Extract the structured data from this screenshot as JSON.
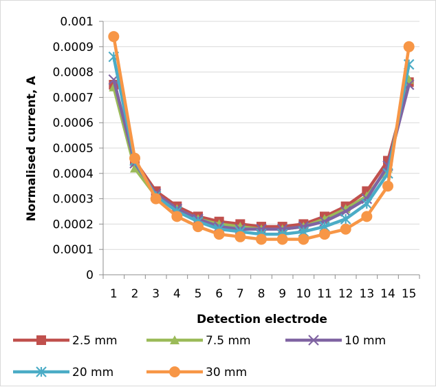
{
  "chart_data": {
    "type": "line",
    "title": "",
    "xlabel": "Detection electrode",
    "ylabel": "Normalised current, A",
    "x": [
      1,
      2,
      3,
      4,
      5,
      6,
      7,
      8,
      9,
      10,
      11,
      12,
      13,
      14,
      15
    ],
    "ylim": [
      0,
      0.001
    ],
    "yticks": [
      "0",
      "0.0001",
      "0.0002",
      "0.0003",
      "0.0004",
      "0.0005",
      "0.0006",
      "0.0007",
      "0.0008",
      "0.0009",
      "0.001"
    ],
    "grid": true,
    "legend_position": "bottom",
    "series": [
      {
        "name": "2.5 mm",
        "color": "#c0504d",
        "marker": "square",
        "values": [
          0.00075,
          0.00045,
          0.00033,
          0.00027,
          0.00023,
          0.00021,
          0.0002,
          0.00019,
          0.00019,
          0.0002,
          0.00023,
          0.00027,
          0.00033,
          0.00045,
          0.00076
        ]
      },
      {
        "name": "7.5 mm",
        "color": "#9bbb59",
        "marker": "triangle",
        "values": [
          0.00074,
          0.00042,
          0.00031,
          0.00026,
          0.00022,
          0.0002,
          0.00019,
          0.00018,
          0.00018,
          0.00019,
          0.00022,
          0.00026,
          0.00031,
          0.00042,
          0.00077
        ]
      },
      {
        "name": "10 mm",
        "color": "#8064a2",
        "marker": "x",
        "values": [
          0.00077,
          0.00044,
          0.00032,
          0.00026,
          0.00022,
          0.00019,
          0.00018,
          0.00018,
          0.00018,
          0.00019,
          0.00021,
          0.00025,
          0.0003,
          0.00043,
          0.00075
        ]
      },
      {
        "name": "20 mm",
        "color": "#4bacc6",
        "marker": "star",
        "values": [
          0.00086,
          0.00045,
          0.00031,
          0.00025,
          0.00021,
          0.00018,
          0.00017,
          0.00016,
          0.00016,
          0.00017,
          0.00019,
          0.00022,
          0.00028,
          0.0004,
          0.00083
        ]
      },
      {
        "name": "30 mm",
        "color": "#f79646",
        "marker": "circle",
        "values": [
          0.00094,
          0.00046,
          0.0003,
          0.00023,
          0.00019,
          0.00016,
          0.00015,
          0.00014,
          0.00014,
          0.00014,
          0.00016,
          0.00018,
          0.00023,
          0.00035,
          0.0009
        ]
      }
    ]
  }
}
